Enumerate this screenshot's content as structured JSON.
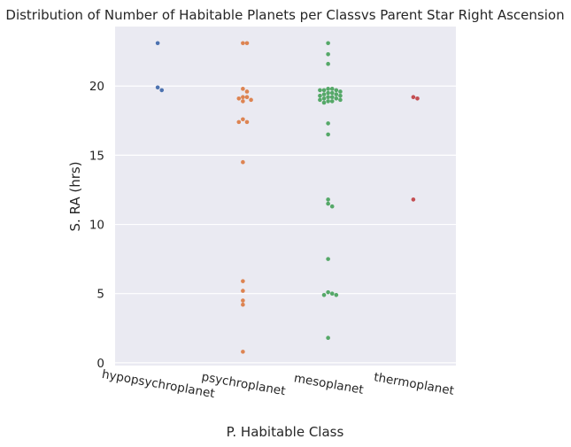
{
  "chart_data": {
    "type": "scatter",
    "title": "Distribution of Number of Habitable Planets per Classvs Parent Star Right Ascension",
    "xlabel": "P. Habitable Class",
    "ylabel": "S. RA (hrs)",
    "categories": [
      "hypopsychroplanet",
      "psychroplanet",
      "mesoplanet",
      "thermoplanet"
    ],
    "ylim": [
      -0.2,
      24.3
    ],
    "yticks": [
      0,
      5,
      10,
      15,
      20
    ],
    "grid": true,
    "series": [
      {
        "category": "hypopsychroplanet",
        "color": "#4c72b0",
        "values": [
          23.1,
          19.9,
          19.7
        ]
      },
      {
        "category": "psychroplanet",
        "color": "#dd8452",
        "values": [
          23.1,
          23.1,
          19.8,
          19.6,
          19.2,
          19.2,
          19.1,
          19.0,
          18.9,
          17.6,
          17.4,
          17.4,
          14.5,
          5.9,
          5.2,
          4.5,
          4.2,
          0.8
        ]
      },
      {
        "category": "mesoplanet",
        "color": "#55a868",
        "values": [
          23.1,
          22.3,
          21.6,
          19.8,
          19.8,
          19.7,
          19.7,
          19.7,
          19.6,
          19.5,
          19.5,
          19.4,
          19.4,
          19.3,
          19.3,
          19.2,
          19.2,
          19.1,
          19.1,
          19.0,
          19.0,
          18.9,
          18.9,
          18.8,
          17.3,
          16.5,
          11.8,
          11.5,
          11.3,
          7.5,
          5.1,
          5.0,
          4.9,
          4.9,
          1.8
        ]
      },
      {
        "category": "thermoplanet",
        "color": "#c44e52",
        "values": [
          19.2,
          19.1,
          11.8
        ]
      }
    ]
  }
}
